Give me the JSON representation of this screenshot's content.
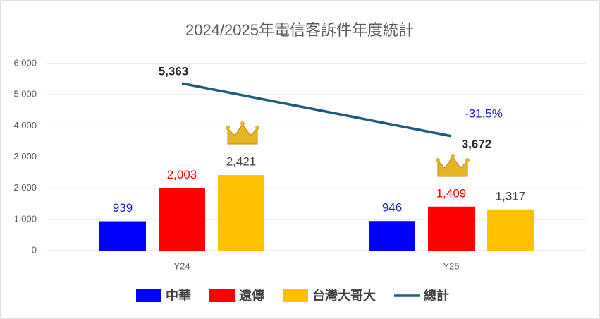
{
  "chart_data": {
    "type": "bar",
    "title": "2024/2025年電信客訴件年度統計",
    "categories": [
      "Y24",
      "Y25"
    ],
    "series": [
      {
        "name": "中華",
        "type": "bar",
        "color": "#0000ff",
        "label_color": "#1f1fd1",
        "values": [
          939,
          946
        ],
        "value_labels": [
          "939",
          "946"
        ]
      },
      {
        "name": "遠傳",
        "type": "bar",
        "color": "#ff0000",
        "label_color": "#ff0000",
        "values": [
          2003,
          1409
        ],
        "value_labels": [
          "2,003",
          "1,409"
        ]
      },
      {
        "name": "台灣大哥大",
        "type": "bar",
        "color": "#ffc000",
        "label_color": "#404040",
        "values": [
          2421,
          1317
        ],
        "value_labels": [
          "2,421",
          "1,317"
        ]
      },
      {
        "name": "總計",
        "type": "line",
        "color": "#1f5c7a",
        "label_color": "#262626",
        "values": [
          5363,
          3672
        ],
        "value_labels": [
          "5,363",
          "3,672"
        ]
      }
    ],
    "annotations": [
      "-31.5%"
    ],
    "ylim": [
      0,
      6000
    ],
    "yticks": [
      {
        "value": 0,
        "label": "0"
      },
      {
        "value": 1000,
        "label": "1,000"
      },
      {
        "value": 2000,
        "label": "2,000"
      },
      {
        "value": 3000,
        "label": "3,000"
      },
      {
        "value": 4000,
        "label": "4,000"
      },
      {
        "value": 5000,
        "label": "5,000"
      },
      {
        "value": 6000,
        "label": "6,000"
      }
    ],
    "grid": true
  }
}
